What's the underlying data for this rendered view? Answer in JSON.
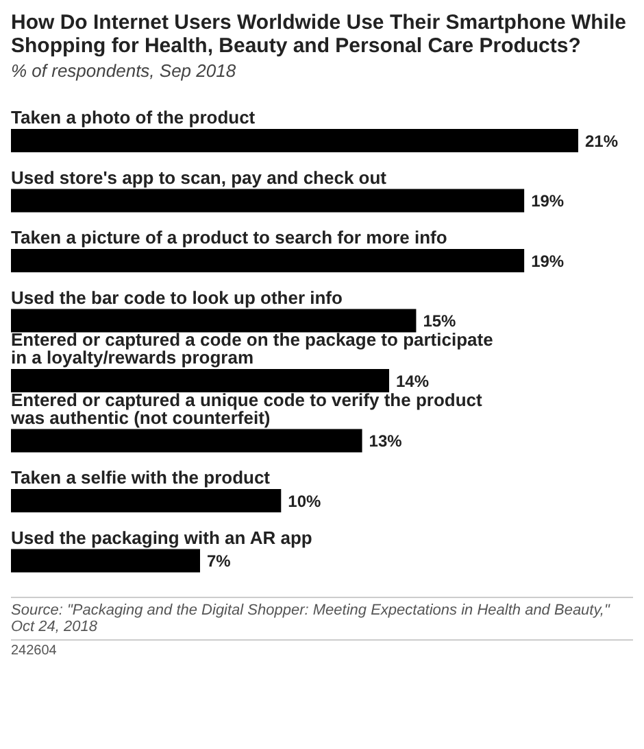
{
  "chart_data": {
    "type": "bar",
    "orientation": "horizontal",
    "title": "How Do Internet Users Worldwide Use Their Smartphone While Shopping for Health, Beauty and Personal Care Products?",
    "subtitle": "% of respondents, Sep 2018",
    "categories": [
      "Taken a photo of the product",
      "Used store's app to scan, pay and check out",
      "Taken a picture of a product to search for more info",
      "Used the bar code to look up other info",
      "Entered or captured a code on the package to participate in a loyalty/rewards program",
      "Entered or captured a unique code to verify the product was authentic (not counterfeit)",
      "Taken a selfie with the product",
      "Used the packaging with an AR app"
    ],
    "values": [
      21,
      19,
      19,
      15,
      14,
      13,
      10,
      7
    ],
    "value_labels": [
      "21%",
      "19%",
      "19%",
      "15%",
      "14%",
      "13%",
      "10%",
      "7%"
    ],
    "color": "#000000",
    "annotations": [
      "Source: \"Packaging and the Digital Shopper: Meeting Expectations in Health and Beauty,\" Oct 24, 2018",
      "242604"
    ]
  }
}
